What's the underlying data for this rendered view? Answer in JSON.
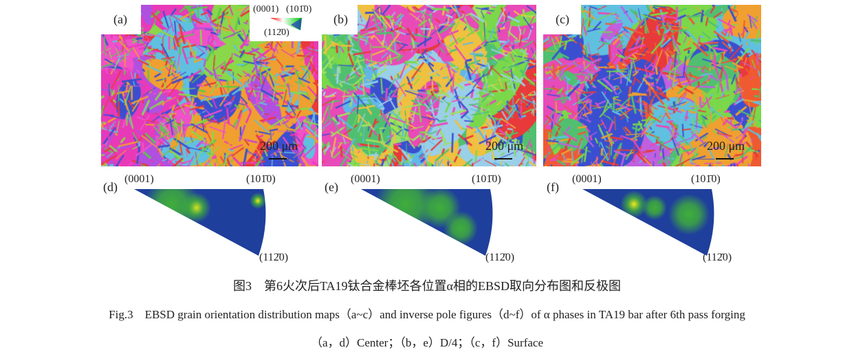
{
  "panels": [
    {
      "label": "(a)",
      "scale": "200 μm"
    },
    {
      "label": "(b)",
      "scale": "200 μm"
    },
    {
      "label": "(c)",
      "scale": "200 μm"
    }
  ],
  "legend": {
    "top_left": "(0001)",
    "top_right": "(101̄0)",
    "bottom": "(112̄0)"
  },
  "ipf": [
    {
      "label": "(d)",
      "p0001": "(0001)",
      "p1010": "(101̄0)",
      "p1120": "(112̄0)"
    },
    {
      "label": "(e)",
      "p0001": "(0001)",
      "p1010": "(101̄0)",
      "p1120": "(112̄0)"
    },
    {
      "label": "(f)",
      "p0001": "(0001)",
      "p1010": "(101̄0)",
      "p1120": "(112̄0)"
    }
  ],
  "caption": {
    "cn": "图3　第6火次后TA19钛合金棒坯各位置α相的EBSD取向分布图和反极图",
    "en": "Fig.3　EBSD grain orientation distribution maps（a~c）and inverse pole figures（d~f）of α phases in TA19 bar after 6th pass forging",
    "sub": "（a，d）Center；（b，e）D/4；（c，f）Surface"
  },
  "colors": {
    "ipf_low": "#1f3f9c",
    "ipf_mid": "#3fae3a",
    "ipf_high": "#f2ee1a"
  }
}
